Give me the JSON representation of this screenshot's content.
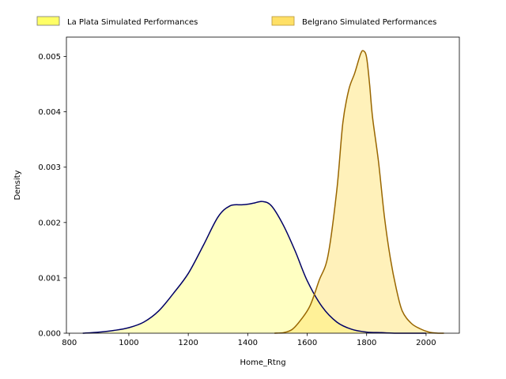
{
  "chart_data": {
    "type": "area",
    "xlabel": "Home_Rtng",
    "ylabel": "Density",
    "xlim": [
      790,
      2112
    ],
    "ylim": [
      0,
      0.00535
    ],
    "xticks": [
      800,
      1000,
      1200,
      1400,
      1600,
      1800,
      2000
    ],
    "yticks": [
      0.0,
      0.001,
      0.002,
      0.003,
      0.004,
      0.005
    ],
    "xtick_labels": [
      "800",
      "1000",
      "1200",
      "1400",
      "1600",
      "1800",
      "2000"
    ],
    "ytick_labels": [
      "0.000",
      "0.001",
      "0.002",
      "0.003",
      "0.004",
      "0.005"
    ],
    "grid": false,
    "legend_position": "top, outside plot",
    "series": [
      {
        "name": "La Plata Simulated Performances",
        "fill_color": "#ffff99",
        "line_color": "#000066",
        "x": [
          845,
          900,
          950,
          1000,
          1050,
          1100,
          1150,
          1200,
          1250,
          1300,
          1340,
          1380,
          1400,
          1420,
          1450,
          1480,
          1520,
          1560,
          1600,
          1650,
          1700,
          1750,
          1800,
          1850,
          1900,
          1950,
          2000
        ],
        "y": [
          0.0,
          2e-05,
          5e-05,
          0.0001,
          0.0002,
          0.0004,
          0.00072,
          0.00108,
          0.00158,
          0.0021,
          0.0023,
          0.00232,
          0.00233,
          0.00235,
          0.00238,
          0.0023,
          0.00195,
          0.00148,
          0.00095,
          0.00048,
          0.0002,
          7e-05,
          2e-05,
          1e-05,
          0.0,
          0.0,
          0.0
        ]
      },
      {
        "name": "Belgrano Simulated Performances",
        "fill_color": "#ffe066",
        "line_color": "#996600",
        "x": [
          1490,
          1520,
          1550,
          1580,
          1610,
          1640,
          1670,
          1700,
          1720,
          1740,
          1760,
          1780,
          1790,
          1800,
          1810,
          1820,
          1840,
          1860,
          1880,
          1900,
          1920,
          1950,
          1980,
          2010,
          2040,
          2060
        ],
        "y": [
          0.0,
          1e-05,
          7e-05,
          0.00025,
          0.0005,
          0.00095,
          0.0014,
          0.0026,
          0.0038,
          0.0044,
          0.0047,
          0.00505,
          0.0051,
          0.00498,
          0.0045,
          0.0039,
          0.0031,
          0.0021,
          0.00135,
          0.0008,
          0.0004,
          0.00018,
          8e-05,
          2e-05,
          0.0,
          0.0
        ]
      }
    ]
  }
}
